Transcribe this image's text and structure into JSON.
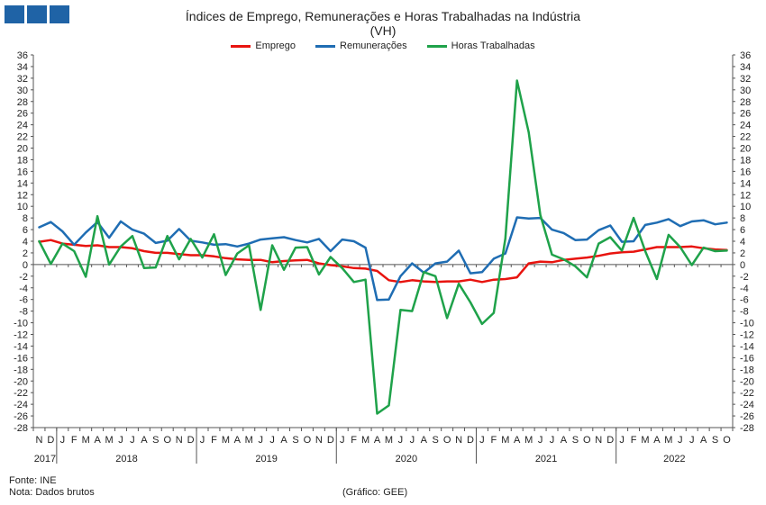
{
  "title_line1": "Índices de Emprego, Remunerações e Horas Trabalhadas na Indústria",
  "title_line2": "(VH)",
  "footer": {
    "source": "Fonte: INE",
    "note": "Nota: Dados brutos",
    "credit": "(Gráfico: GEE)"
  },
  "chart_data": {
    "type": "line",
    "title": "Índices de Emprego, Remunerações e Horas Trabalhadas na Indústria (VH)",
    "xlabel": "",
    "ylabel": "",
    "ylim": [
      -28,
      36
    ],
    "y_ticks": [
      36,
      34,
      32,
      30,
      28,
      26,
      24,
      22,
      20,
      18,
      16,
      14,
      12,
      10,
      8,
      6,
      4,
      2,
      0,
      -2,
      -4,
      -6,
      -8,
      -10,
      -12,
      -14,
      -16,
      -18,
      -20,
      -22,
      -24,
      -26,
      -28
    ],
    "grid": false,
    "legend_position": "top",
    "x": [
      "N",
      "D",
      "J",
      "F",
      "M",
      "A",
      "M",
      "J",
      "J",
      "A",
      "S",
      "O",
      "N",
      "D",
      "J",
      "F",
      "M",
      "A",
      "M",
      "J",
      "J",
      "A",
      "S",
      "O",
      "N",
      "D",
      "J",
      "F",
      "M",
      "A",
      "M",
      "J",
      "J",
      "A",
      "S",
      "O",
      "N",
      "D",
      "J",
      "F",
      "M",
      "A",
      "M",
      "J",
      "J",
      "A",
      "S",
      "O",
      "N",
      "D",
      "J",
      "F",
      "M",
      "A",
      "M",
      "J",
      "J",
      "A",
      "S",
      "O"
    ],
    "years": [
      {
        "label": "2017",
        "start": 0,
        "end": 1
      },
      {
        "label": "2018",
        "start": 2,
        "end": 13
      },
      {
        "label": "2019",
        "start": 14,
        "end": 25
      },
      {
        "label": "2020",
        "start": 26,
        "end": 37
      },
      {
        "label": "2021",
        "start": 38,
        "end": 49
      },
      {
        "label": "2022",
        "start": 50,
        "end": 59
      }
    ],
    "series": [
      {
        "name": "Emprego",
        "color": "#e8140f",
        "values": [
          3.9,
          4.2,
          3.6,
          3.4,
          3.2,
          3.3,
          3.0,
          3.0,
          2.8,
          2.3,
          2.0,
          2.0,
          1.8,
          1.6,
          1.6,
          1.4,
          1.1,
          0.9,
          0.8,
          0.8,
          0.4,
          0.6,
          0.7,
          0.8,
          0.2,
          -0.1,
          -0.3,
          -0.6,
          -0.7,
          -1.1,
          -2.7,
          -3.0,
          -2.7,
          -2.9,
          -3.0,
          -2.9,
          -2.9,
          -2.6,
          -3.0,
          -2.6,
          -2.5,
          -2.2,
          0.2,
          0.5,
          0.4,
          0.8,
          1.0,
          1.2,
          1.5,
          1.9,
          2.1,
          2.2,
          2.6,
          3.0,
          3.0,
          3.0,
          3.1,
          2.8,
          2.6,
          2.5
        ]
      },
      {
        "name": "Remunerações",
        "color": "#1f6db3",
        "values": [
          6.4,
          7.3,
          5.7,
          3.4,
          5.5,
          7.3,
          4.6,
          7.4,
          6.0,
          5.3,
          3.7,
          4.1,
          6.1,
          4.1,
          3.8,
          3.4,
          3.5,
          3.1,
          3.6,
          4.3,
          4.5,
          4.7,
          4.2,
          3.8,
          4.4,
          2.3,
          4.3,
          4.0,
          2.9,
          -6.1,
          -6.0,
          -2.0,
          0.2,
          -1.4,
          0.2,
          0.5,
          2.4,
          -1.5,
          -1.3,
          1.0,
          1.9,
          8.1,
          7.9,
          8.0,
          6.0,
          5.4,
          4.2,
          4.3,
          5.9,
          6.7,
          3.9,
          4.0,
          6.8,
          7.2,
          7.8,
          6.6,
          7.4,
          7.6,
          6.9,
          7.2
        ]
      },
      {
        "name": "Horas Trabalhadas",
        "color": "#1fa24a",
        "values": [
          4.0,
          0.1,
          3.6,
          2.3,
          -2.1,
          8.3,
          0.0,
          3.1,
          4.9,
          -0.6,
          -0.5,
          4.9,
          0.9,
          4.4,
          1.2,
          5.2,
          -1.8,
          1.9,
          3.3,
          -7.8,
          3.3,
          -0.9,
          2.9,
          3.0,
          -1.7,
          1.3,
          -0.6,
          -3.0,
          -2.6,
          -25.6,
          -24.2,
          -7.8,
          -8.0,
          -1.3,
          -2.0,
          -9.2,
          -3.3,
          -6.5,
          -10.2,
          -8.3,
          4.5,
          31.6,
          22.7,
          8.5,
          1.7,
          0.9,
          -0.3,
          -2.2,
          3.6,
          4.7,
          2.4,
          8.0,
          2.3,
          -2.5,
          5.1,
          3.0,
          -0.1,
          2.9,
          2.3,
          2.4
        ]
      }
    ]
  }
}
